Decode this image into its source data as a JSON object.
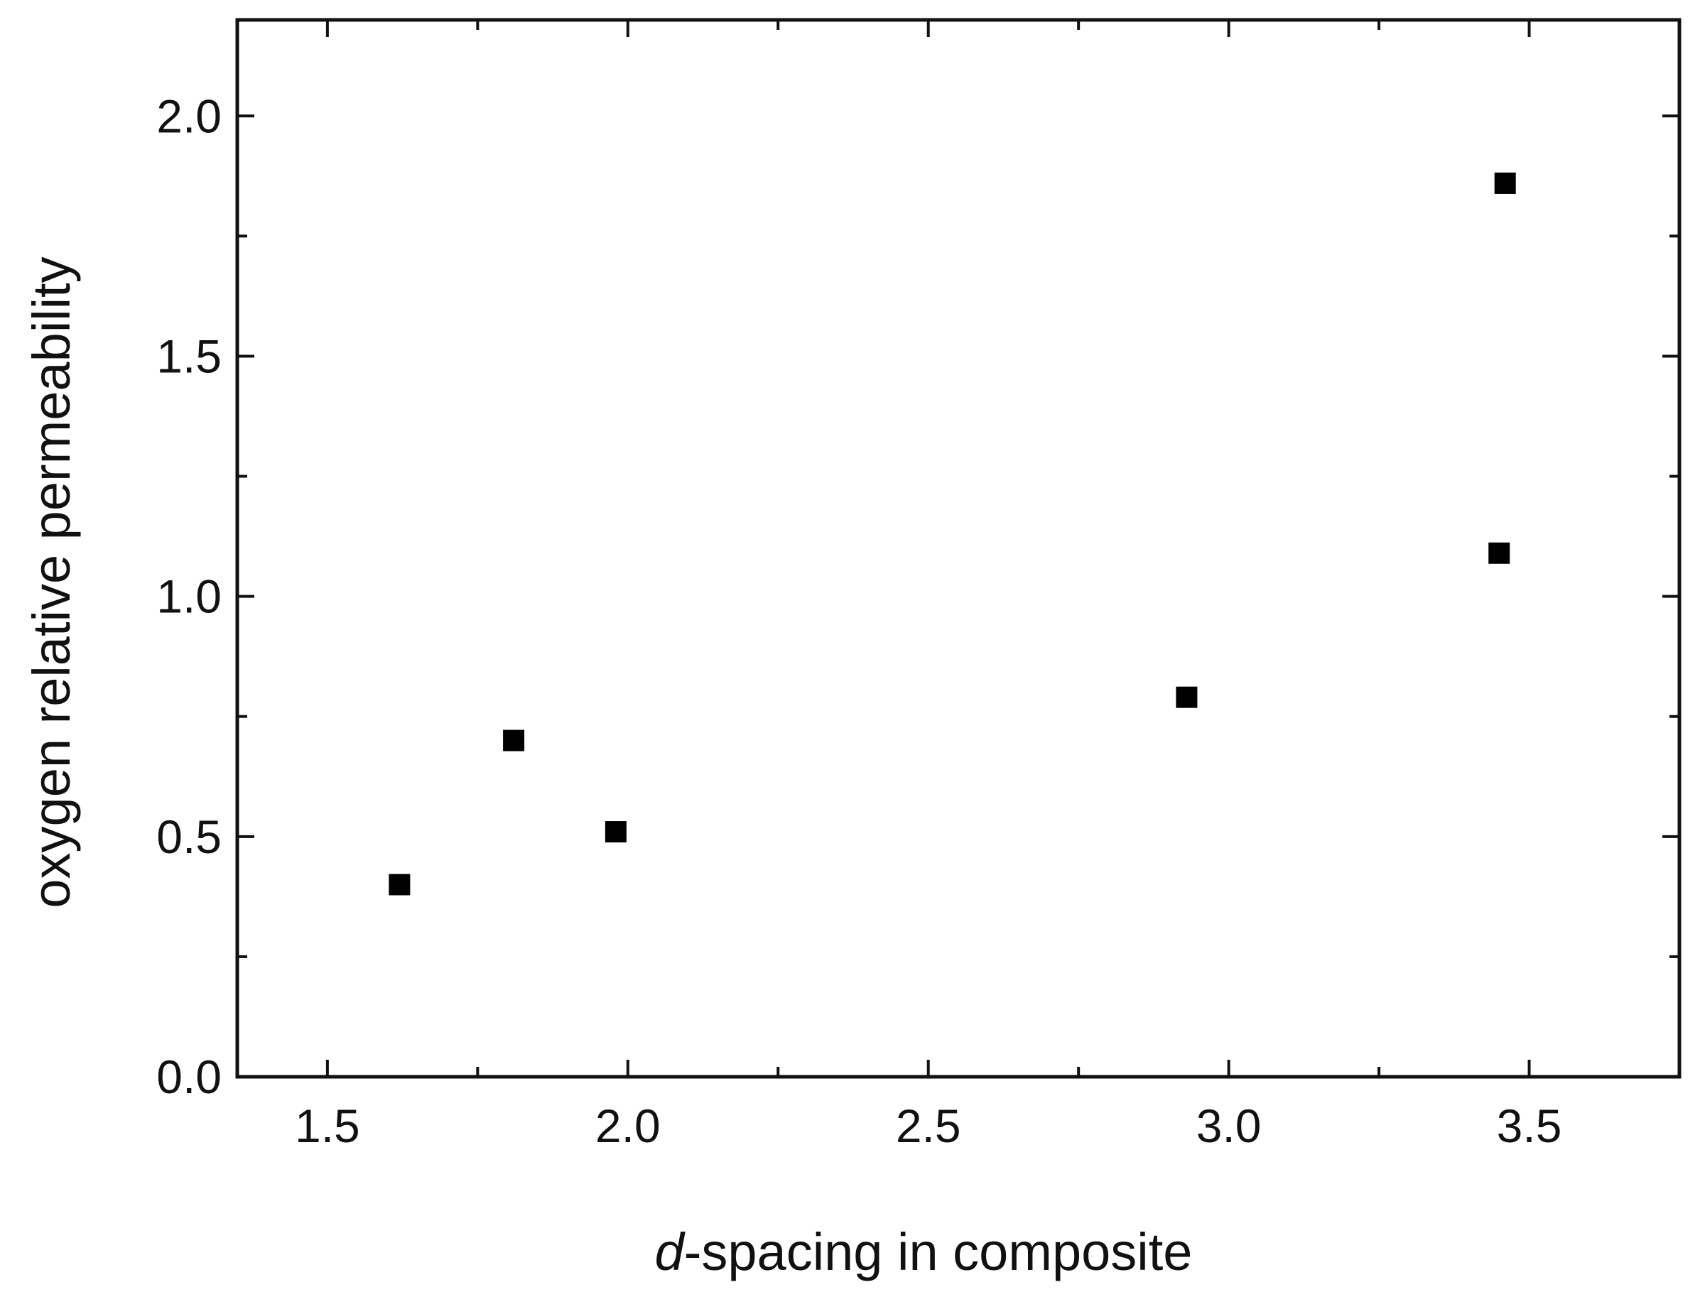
{
  "chart_data": {
    "type": "scatter",
    "xlabel_prefix": "d",
    "xlabel_suffix": "-spacing in composite",
    "ylabel": "oxygen relative permeability",
    "xlim": [
      1.35,
      3.75
    ],
    "ylim": [
      0.0,
      2.2
    ],
    "x_ticks": [
      1.5,
      2.0,
      2.5,
      3.0,
      3.5
    ],
    "x_tick_labels": [
      "1.5",
      "2.0",
      "2.5",
      "3.0",
      "3.5"
    ],
    "x_minor_ticks": [
      1.75,
      2.25,
      2.75,
      3.25
    ],
    "y_ticks": [
      0.0,
      0.5,
      1.0,
      1.5,
      2.0
    ],
    "y_tick_labels": [
      "0.0",
      "0.5",
      "1.0",
      "1.5",
      "2.0"
    ],
    "y_minor_ticks": [
      0.25,
      0.75,
      1.25,
      1.75
    ],
    "grid": false,
    "marker": "square",
    "marker_color": "#000000",
    "points": [
      {
        "x": 1.62,
        "y": 0.4
      },
      {
        "x": 1.81,
        "y": 0.7
      },
      {
        "x": 1.98,
        "y": 0.51
      },
      {
        "x": 2.93,
        "y": 0.79
      },
      {
        "x": 3.45,
        "y": 1.09
      },
      {
        "x": 3.46,
        "y": 1.86
      }
    ]
  }
}
